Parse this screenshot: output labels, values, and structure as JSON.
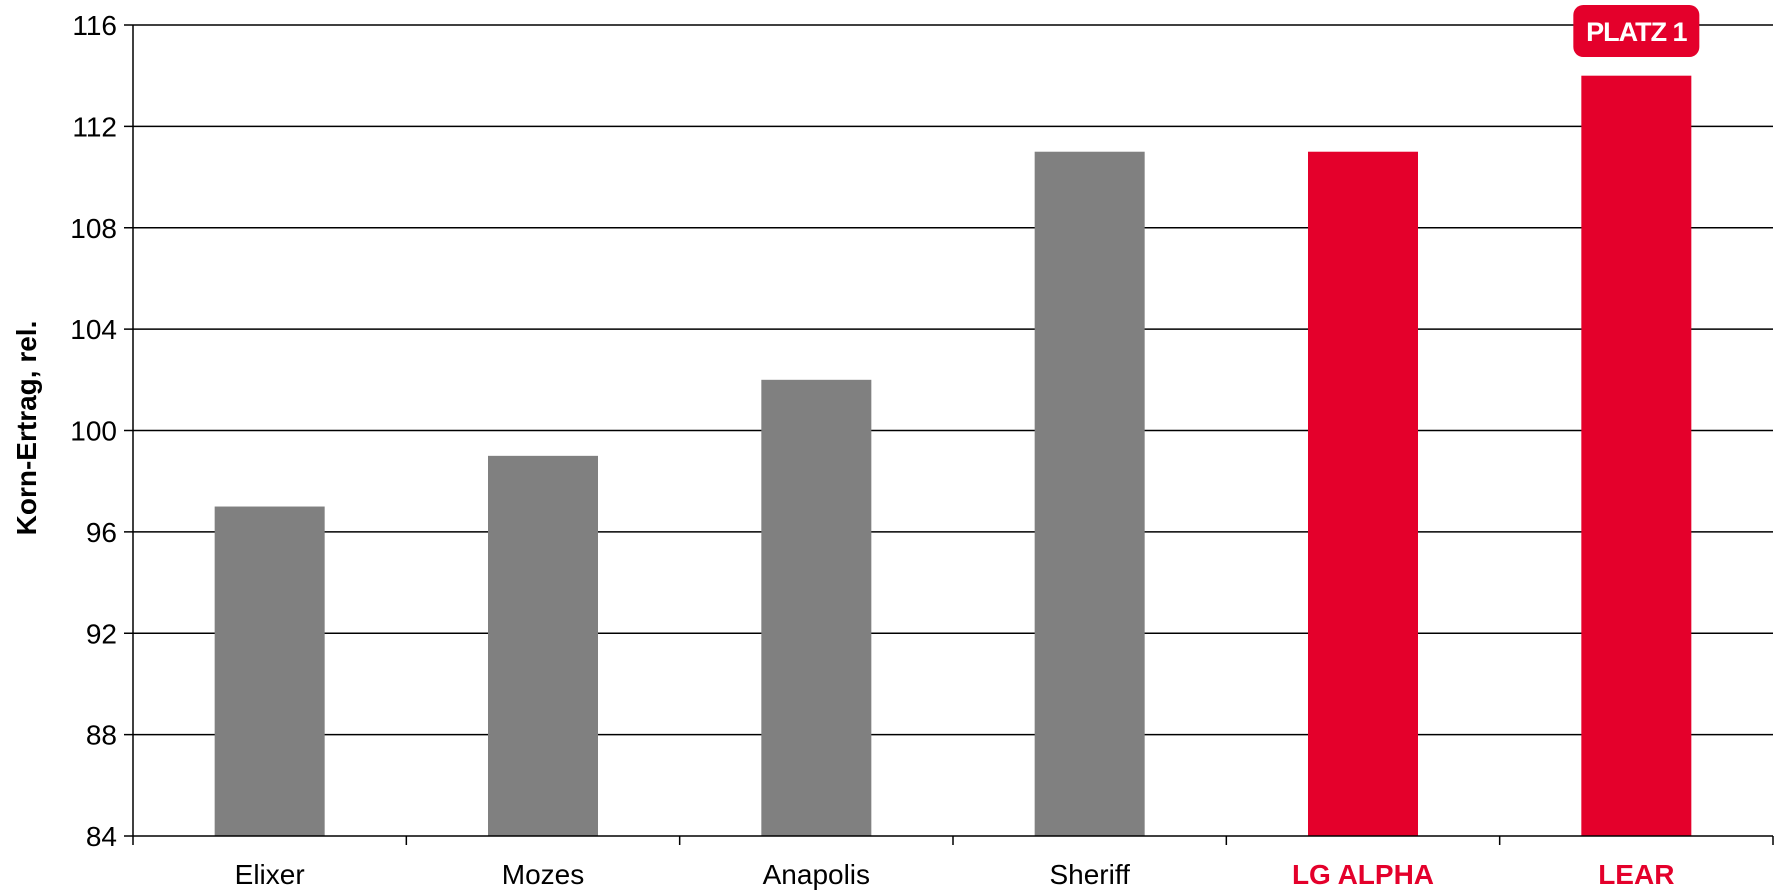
{
  "chart_data": {
    "type": "bar",
    "title": "",
    "xlabel": "",
    "ylabel": "Korn-Ertrag, rel.",
    "ylim": [
      84,
      116
    ],
    "yticks": [
      "84",
      "88",
      "92",
      "96",
      "100",
      "104",
      "108",
      "112",
      "116"
    ],
    "grid": true,
    "legend": "none",
    "categories": [
      "Elixer",
      "Mozes",
      "Anapolis",
      "Sheriff",
      "LG ALPHA",
      "LEAR"
    ],
    "values": [
      97,
      99,
      102,
      111,
      111,
      114
    ],
    "highlighted": [
      false,
      false,
      false,
      false,
      true,
      true
    ],
    "colors": {
      "default_bar": "#808080",
      "highlight_bar": "#e4002b",
      "default_label": "#000000",
      "highlight_label": "#e4002b",
      "grid": "#000000",
      "badge": "#e4002b"
    },
    "annotations": [
      {
        "category": "LEAR",
        "text": "PLATZ 1"
      }
    ]
  }
}
